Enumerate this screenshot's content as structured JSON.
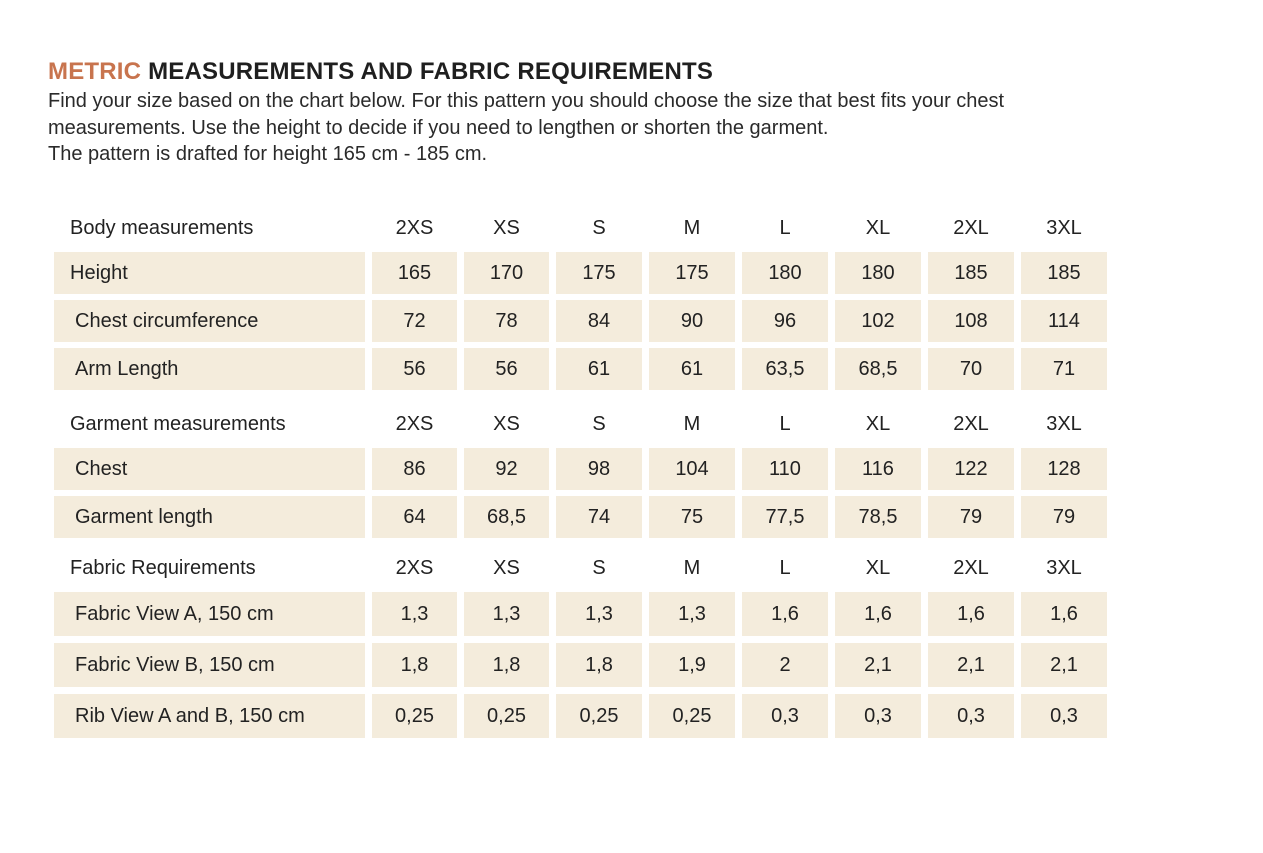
{
  "title": {
    "accent": "METRIC",
    "rest": " MEASUREMENTS AND FABRIC REQUIREMENTS"
  },
  "intro": {
    "line1": "Find your size based on the chart below. For this pattern you should choose the size that best fits your chest",
    "line2": "measurements. Use the height to decide if you need to lengthen or shorten the garment.",
    "line3": "The pattern is drafted for height 165 cm - 185 cm."
  },
  "colors": {
    "accent": "#c8744e",
    "cell_background": "#f4ecdc",
    "text": "#222222"
  },
  "sections": [
    {
      "header": "Body measurements",
      "sizes": [
        "2XS",
        "XS",
        "S",
        "M",
        "L",
        "XL",
        "2XL",
        "3XL"
      ],
      "rows": [
        {
          "label": "Height",
          "values": [
            "165",
            "170",
            "175",
            "175",
            "180",
            "180",
            "185",
            "185"
          ]
        },
        {
          "label": "Chest circumference",
          "values": [
            "72",
            "78",
            "84",
            "90",
            "96",
            "102",
            "108",
            "114"
          ]
        },
        {
          "label": "Arm Length",
          "values": [
            "56",
            "56",
            "61",
            "61",
            "63,5",
            "68,5",
            "70",
            "71"
          ]
        }
      ]
    },
    {
      "header": "Garment measurements",
      "sizes": [
        "2XS",
        "XS",
        "S",
        "M",
        "L",
        "XL",
        "2XL",
        "3XL"
      ],
      "rows": [
        {
          "label": "Chest",
          "values": [
            "86",
            "92",
            "98",
            "104",
            "110",
            "116",
            "122",
            "128"
          ]
        },
        {
          "label": "Garment length",
          "values": [
            "64",
            "68,5",
            "74",
            "75",
            "77,5",
            "78,5",
            "79",
            "79"
          ]
        }
      ]
    },
    {
      "header": "Fabric Requirements",
      "sizes": [
        "2XS",
        "XS",
        "S",
        "M",
        "L",
        "XL",
        "2XL",
        "3XL"
      ],
      "rows": [
        {
          "label": "Fabric  View A, 150 cm",
          "values": [
            "1,3",
            "1,3",
            "1,3",
            "1,3",
            "1,6",
            "1,6",
            "1,6",
            "1,6"
          ]
        },
        {
          "label": "Fabric View B, 150 cm",
          "values": [
            "1,8",
            "1,8",
            "1,8",
            "1,9",
            "2",
            "2,1",
            "2,1",
            "2,1"
          ]
        },
        {
          "label": "Rib View A and B, 150 cm",
          "values": [
            "0,25",
            "0,25",
            "0,25",
            "0,25",
            "0,3",
            "0,3",
            "0,3",
            "0,3"
          ]
        }
      ]
    }
  ]
}
